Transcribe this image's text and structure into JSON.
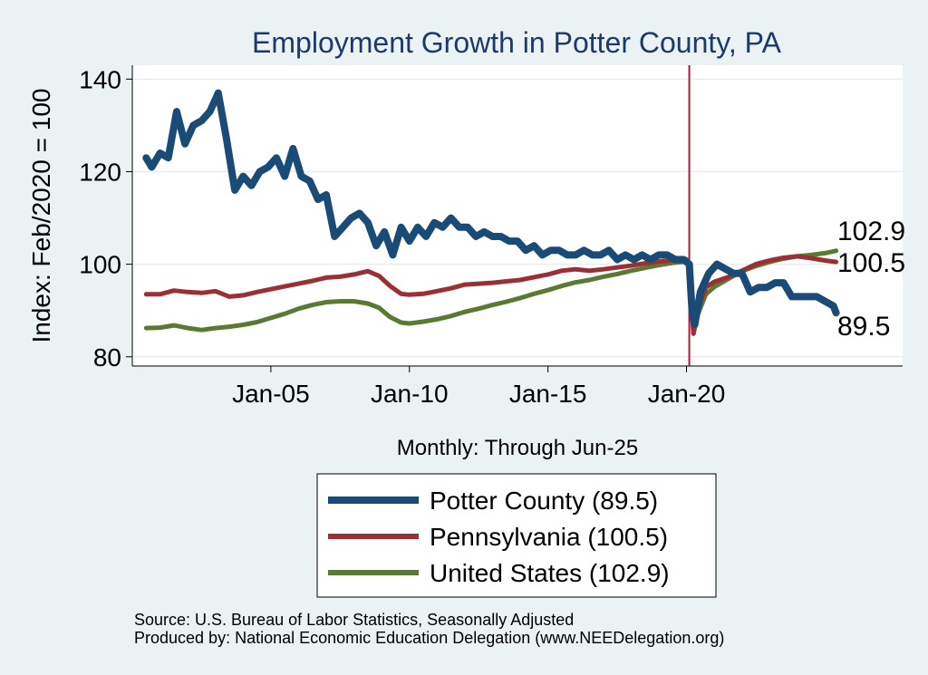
{
  "chart_data": {
    "type": "line",
    "title": "Employment Growth in Potter  County, PA",
    "ylabel": "Index: Feb/2020 = 100",
    "xlabel": "Monthly: Through Jun-25",
    "ylim": [
      78,
      143
    ],
    "yticks": [
      80,
      100,
      120,
      140
    ],
    "xlim": [
      2000.0,
      2027.8
    ],
    "xticks": [
      {
        "label": "Jan-05",
        "value": 2005.0
      },
      {
        "label": "Jan-10",
        "value": 2010.0
      },
      {
        "label": "Jan-15",
        "value": 2015.0
      },
      {
        "label": "Jan-20",
        "value": 2020.0
      }
    ],
    "reference_line": {
      "x": 2020.1,
      "color": "#b0183a"
    },
    "series": [
      {
        "name": "Potter  County",
        "legend": "Potter  County (89.5)",
        "end_label": "89.5",
        "color": "#1a4a76",
        "x": [
          2000.5,
          2000.7,
          2001.0,
          2001.3,
          2001.6,
          2001.9,
          2002.2,
          2002.5,
          2002.8,
          2003.1,
          2003.4,
          2003.7,
          2004.0,
          2004.3,
          2004.6,
          2004.9,
          2005.2,
          2005.5,
          2005.8,
          2006.1,
          2006.4,
          2006.7,
          2007.0,
          2007.3,
          2007.6,
          2007.9,
          2008.2,
          2008.5,
          2008.8,
          2009.1,
          2009.4,
          2009.7,
          2010.0,
          2010.3,
          2010.6,
          2010.9,
          2011.2,
          2011.5,
          2011.8,
          2012.1,
          2012.4,
          2012.7,
          2013.0,
          2013.3,
          2013.6,
          2013.9,
          2014.2,
          2014.5,
          2014.8,
          2015.1,
          2015.4,
          2015.7,
          2016.0,
          2016.3,
          2016.6,
          2016.9,
          2017.2,
          2017.5,
          2017.8,
          2018.1,
          2018.4,
          2018.7,
          2019.0,
          2019.3,
          2019.6,
          2019.9,
          2020.1,
          2020.2,
          2020.3,
          2020.5,
          2020.8,
          2021.1,
          2021.4,
          2021.7,
          2022.0,
          2022.3,
          2022.6,
          2022.9,
          2023.2,
          2023.5,
          2023.8,
          2024.1,
          2024.4,
          2024.7,
          2025.0,
          2025.3,
          2025.4
        ],
        "y": [
          123,
          121,
          124,
          123,
          133,
          126,
          130,
          131,
          133,
          137,
          127,
          116,
          119,
          117,
          120,
          121,
          123,
          119,
          125,
          119,
          118,
          114,
          115,
          106,
          108,
          110,
          111,
          109,
          104,
          107,
          102,
          108,
          105,
          108,
          106,
          109,
          108,
          110,
          108,
          108,
          106,
          107,
          106,
          106,
          105,
          105,
          103,
          104,
          102,
          103,
          103,
          102,
          102,
          103,
          102,
          102,
          103,
          101,
          102,
          101,
          102,
          101,
          102,
          102,
          101,
          101,
          100,
          90,
          87,
          94,
          98,
          100,
          99,
          98,
          98,
          94,
          95,
          95,
          96,
          96,
          93,
          93,
          93,
          93,
          92,
          91,
          89.5
        ]
      },
      {
        "name": "Pennsylvania",
        "legend": "Pennsylvania (100.5)",
        "end_label": "100.5",
        "color": "#9b3034",
        "x": [
          2000.5,
          2001.0,
          2001.5,
          2002.0,
          2002.5,
          2003.0,
          2003.5,
          2004.0,
          2004.5,
          2005.0,
          2005.5,
          2006.0,
          2006.5,
          2007.0,
          2007.5,
          2008.0,
          2008.5,
          2008.9,
          2009.3,
          2009.7,
          2010.0,
          2010.5,
          2011.0,
          2011.5,
          2012.0,
          2012.5,
          2013.0,
          2013.5,
          2014.0,
          2014.5,
          2015.0,
          2015.5,
          2016.0,
          2016.5,
          2017.0,
          2017.5,
          2018.0,
          2018.5,
          2019.0,
          2019.5,
          2020.0,
          2020.1,
          2020.25,
          2020.4,
          2020.7,
          2021.0,
          2021.5,
          2022.0,
          2022.5,
          2023.0,
          2023.5,
          2024.0,
          2024.5,
          2025.0,
          2025.4
        ],
        "y": [
          93.5,
          93.5,
          94.3,
          94.0,
          93.8,
          94.2,
          93.0,
          93.3,
          94.0,
          94.6,
          95.2,
          95.8,
          96.4,
          97.1,
          97.3,
          97.8,
          98.5,
          97.5,
          95.3,
          93.6,
          93.4,
          93.6,
          94.2,
          94.8,
          95.6,
          95.8,
          96.0,
          96.3,
          96.6,
          97.2,
          97.8,
          98.6,
          98.9,
          98.6,
          98.9,
          99.3,
          99.7,
          100.2,
          100.6,
          100.8,
          101.0,
          99.0,
          85.0,
          90.0,
          95.0,
          96.2,
          97.2,
          98.6,
          100.0,
          100.8,
          101.4,
          101.7,
          101.3,
          100.8,
          100.5
        ]
      },
      {
        "name": "United States",
        "legend": "United States (102.9)",
        "end_label": "102.9",
        "color": "#5a7a34",
        "x": [
          2000.5,
          2001.0,
          2001.5,
          2002.0,
          2002.5,
          2003.0,
          2003.5,
          2004.0,
          2004.5,
          2005.0,
          2005.5,
          2006.0,
          2006.5,
          2007.0,
          2007.5,
          2008.0,
          2008.5,
          2008.9,
          2009.3,
          2009.7,
          2010.0,
          2010.5,
          2011.0,
          2011.5,
          2012.0,
          2012.5,
          2013.0,
          2013.5,
          2014.0,
          2014.5,
          2015.0,
          2015.5,
          2016.0,
          2016.5,
          2017.0,
          2017.5,
          2018.0,
          2018.5,
          2019.0,
          2019.5,
          2020.0,
          2020.1,
          2020.25,
          2020.4,
          2020.7,
          2021.0,
          2021.5,
          2022.0,
          2022.5,
          2023.0,
          2023.5,
          2024.0,
          2024.5,
          2025.0,
          2025.4
        ],
        "y": [
          86.2,
          86.3,
          86.8,
          86.2,
          85.8,
          86.2,
          86.5,
          86.9,
          87.5,
          88.4,
          89.3,
          90.4,
          91.2,
          91.8,
          92.0,
          92.0,
          91.5,
          90.6,
          88.6,
          87.4,
          87.2,
          87.6,
          88.1,
          88.8,
          89.7,
          90.4,
          91.2,
          91.9,
          92.7,
          93.6,
          94.4,
          95.3,
          96.1,
          96.6,
          97.3,
          97.9,
          98.6,
          99.2,
          99.8,
          100.3,
          100.6,
          99.0,
          85.0,
          89.0,
          93.5,
          95.1,
          96.8,
          98.5,
          99.6,
          100.5,
          101.2,
          101.7,
          102.0,
          102.4,
          102.9
        ]
      }
    ],
    "legend_position": "bottom-center"
  },
  "footer": {
    "source": "Source: U.S. Bureau of Labor Statistics, Seasonally Adjusted",
    "produced": "Produced by: National Economic Education Delegation (www.NEEDelegation.org)"
  }
}
